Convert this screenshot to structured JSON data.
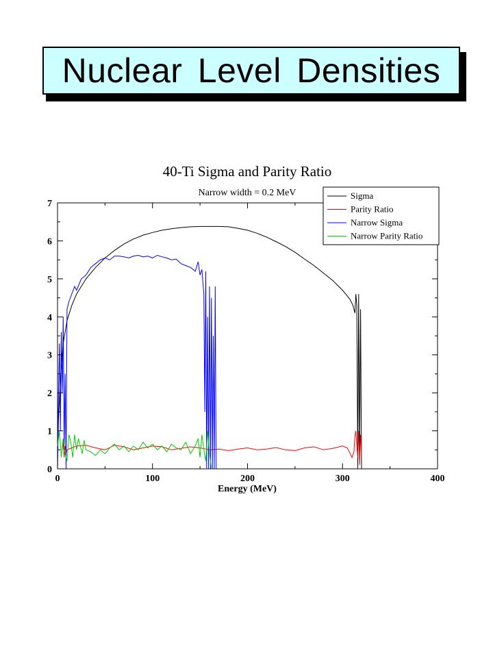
{
  "slide": {
    "title": "Nuclear Level Densities"
  },
  "chart_data": {
    "type": "line",
    "title": "40-Ti Sigma and Parity Ratio",
    "subtitle": "Narrow width = 0.2 MeV",
    "xlabel": "Energy (MeV)",
    "ylabel": "",
    "xlim": [
      0,
      400
    ],
    "ylim": [
      0,
      7
    ],
    "xticks": [
      0,
      100,
      200,
      300,
      400
    ],
    "yticks": [
      0,
      1,
      2,
      3,
      4,
      5,
      6,
      7
    ],
    "legend_position": "top-right",
    "grid": false,
    "series": [
      {
        "name": "Sigma",
        "color": "#000000",
        "x": [
          0,
          1,
          3,
          6,
          10,
          15,
          20,
          30,
          40,
          50,
          60,
          70,
          80,
          90,
          100,
          110,
          120,
          130,
          140,
          150,
          160,
          170,
          180,
          190,
          200,
          210,
          220,
          230,
          240,
          250,
          260,
          270,
          280,
          290,
          300,
          305,
          308,
          311,
          313,
          314,
          315,
          316,
          317,
          318,
          319,
          320
        ],
        "y": [
          0.0,
          1.3,
          2.4,
          3.3,
          3.9,
          4.3,
          4.6,
          5.0,
          5.3,
          5.55,
          5.75,
          5.92,
          6.05,
          6.15,
          6.22,
          6.28,
          6.32,
          6.35,
          6.37,
          6.38,
          6.38,
          6.38,
          6.37,
          6.33,
          6.28,
          6.2,
          6.1,
          5.98,
          5.85,
          5.7,
          5.52,
          5.35,
          5.15,
          4.95,
          4.7,
          4.55,
          4.45,
          4.3,
          4.1,
          4.6,
          4.3,
          0.0,
          4.6,
          0.3,
          4.2,
          0.0
        ]
      },
      {
        "name": "Parity Ratio",
        "color": "#ff0000",
        "x": [
          5,
          6,
          7,
          8,
          9,
          10,
          15,
          20,
          30,
          40,
          50,
          60,
          70,
          80,
          90,
          100,
          110,
          120,
          130,
          140,
          150,
          160,
          170,
          180,
          190,
          200,
          210,
          220,
          230,
          240,
          250,
          260,
          270,
          280,
          290,
          300,
          305,
          308,
          310,
          312,
          313,
          314,
          315,
          316,
          317,
          318,
          319,
          320
        ],
        "y": [
          0.5,
          0.7,
          0.3,
          0.6,
          0.4,
          0.5,
          0.55,
          0.6,
          0.62,
          0.55,
          0.5,
          0.62,
          0.58,
          0.5,
          0.55,
          0.6,
          0.58,
          0.5,
          0.54,
          0.58,
          0.55,
          0.5,
          0.52,
          0.48,
          0.52,
          0.55,
          0.5,
          0.52,
          0.56,
          0.5,
          0.48,
          0.55,
          0.58,
          0.5,
          0.54,
          0.6,
          0.55,
          0.4,
          0.3,
          0.45,
          0.85,
          1.0,
          0.6,
          0.3,
          1.0,
          0.1,
          0.9,
          0.4
        ]
      },
      {
        "name": "Narrow Sigma",
        "color": "#0000ff",
        "x": [
          0,
          1,
          2,
          3,
          4,
          5,
          6,
          7,
          8,
          9,
          10,
          12,
          15,
          18,
          20,
          25,
          30,
          35,
          40,
          45,
          50,
          55,
          60,
          65,
          70,
          75,
          80,
          85,
          90,
          95,
          100,
          105,
          110,
          115,
          120,
          125,
          130,
          135,
          140,
          145,
          148,
          150,
          152,
          153,
          154,
          155,
          156,
          157,
          158,
          159,
          160,
          161,
          162,
          163,
          164,
          165,
          166,
          167
        ],
        "y": [
          0.0,
          2.0,
          3.3,
          1.0,
          3.6,
          2.0,
          4.0,
          0.5,
          2.5,
          0.0,
          4.2,
          4.4,
          4.6,
          4.8,
          4.7,
          5.0,
          5.1,
          5.3,
          5.4,
          5.5,
          5.55,
          5.5,
          5.6,
          5.6,
          5.58,
          5.55,
          5.6,
          5.62,
          5.58,
          5.6,
          5.55,
          5.62,
          5.58,
          5.55,
          5.5,
          5.52,
          5.4,
          5.35,
          5.3,
          5.2,
          5.45,
          5.1,
          5.25,
          4.9,
          4.6,
          1.5,
          5.2,
          0.0,
          4.0,
          0.0,
          4.8,
          0.0,
          4.5,
          0.0,
          3.5,
          0.0,
          4.8,
          0.0
        ]
      },
      {
        "name": "Narrow Parity Ratio",
        "color": "#00cc00",
        "x": [
          0,
          2,
          4,
          6,
          8,
          10,
          12,
          14,
          16,
          18,
          20,
          22,
          24,
          26,
          28,
          30,
          35,
          40,
          45,
          50,
          55,
          60,
          65,
          70,
          75,
          80,
          85,
          90,
          95,
          100,
          105,
          110,
          115,
          120,
          125,
          130,
          135,
          140,
          145,
          148,
          150,
          152,
          154,
          156,
          158,
          160,
          162
        ],
        "y": [
          0.6,
          1.0,
          0.3,
          0.8,
          0.4,
          0.2,
          0.9,
          0.7,
          0.3,
          0.9,
          0.5,
          0.8,
          0.6,
          0.4,
          0.75,
          0.5,
          0.45,
          0.35,
          0.5,
          0.4,
          0.55,
          0.65,
          0.5,
          0.6,
          0.45,
          0.6,
          0.5,
          0.7,
          0.55,
          0.65,
          0.5,
          0.6,
          0.45,
          0.65,
          0.55,
          0.5,
          0.7,
          0.4,
          0.6,
          0.8,
          0.3,
          0.9,
          0.5,
          0.2,
          1.0,
          0.4,
          0.0
        ]
      }
    ]
  }
}
